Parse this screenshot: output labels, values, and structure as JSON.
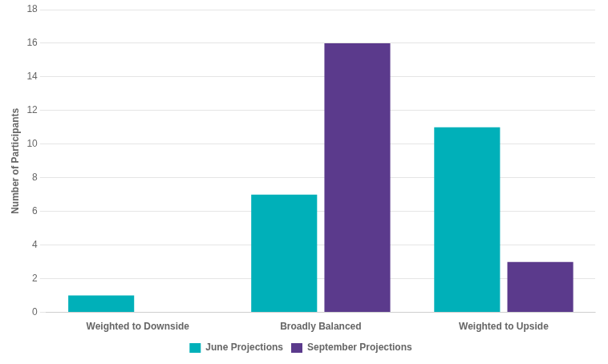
{
  "chart_data": {
    "type": "bar",
    "categories": [
      "Weighted to Downside",
      "Broadly Balanced",
      "Weighted to Upside"
    ],
    "series": [
      {
        "name": "June Projections",
        "color": "#00B0B9",
        "values": [
          1,
          7,
          11
        ]
      },
      {
        "name": "September Projections",
        "color": "#5B3A8C",
        "values": [
          0,
          16,
          3
        ]
      }
    ],
    "ylabel": "Number of Participants",
    "ylim": [
      0,
      18
    ],
    "yticks": [
      0,
      2,
      4,
      6,
      8,
      10,
      12,
      14,
      16,
      18
    ],
    "grid": true,
    "legend": "bottom"
  }
}
